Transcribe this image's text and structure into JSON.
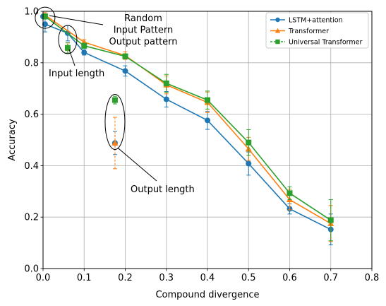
{
  "chart_data": {
    "type": "line",
    "xlabel": "Compound divergence",
    "ylabel": "Accuracy",
    "xlim": [
      0.0,
      0.8
    ],
    "ylim": [
      0.0,
      1.0
    ],
    "xticks": [
      "0.0",
      "0.1",
      "0.2",
      "0.3",
      "0.4",
      "0.5",
      "0.6",
      "0.7",
      "0.8"
    ],
    "yticks": [
      "0.0",
      "0.2",
      "0.4",
      "0.6",
      "0.8",
      "1.0"
    ],
    "grid": true,
    "legend_position": "top-right",
    "series": [
      {
        "name": "LSTM+attention",
        "color": "#1f77b4",
        "marker": "circle",
        "points": [
          {
            "x": 0.005,
            "y": 0.95,
            "err": 0.03
          },
          {
            "x": 0.06,
            "y": 0.915,
            "err": 0.03
          },
          {
            "x": 0.1,
            "y": 0.84,
            "err": 0.01
          },
          {
            "x": 0.2,
            "y": 0.768,
            "err": 0.02
          },
          {
            "x": 0.3,
            "y": 0.658,
            "err": 0.03
          },
          {
            "x": 0.4,
            "y": 0.576,
            "err": 0.035
          },
          {
            "x": 0.5,
            "y": 0.408,
            "err": 0.045
          },
          {
            "x": 0.6,
            "y": 0.232,
            "err": 0.02
          },
          {
            "x": 0.7,
            "y": 0.152,
            "err": 0.06
          }
        ],
        "extra_points": [
          {
            "x": 0.0,
            "y": 0.98,
            "err": 0.0
          },
          {
            "x": 0.175,
            "y": 0.488,
            "err": 0.045
          }
        ]
      },
      {
        "name": "Transformer",
        "color": "#ff7f0e",
        "marker": "triangle",
        "points": [
          {
            "x": 0.005,
            "y": 0.985,
            "err": 0.01
          },
          {
            "x": 0.1,
            "y": 0.88,
            "err": 0.01
          },
          {
            "x": 0.2,
            "y": 0.828,
            "err": 0.015
          },
          {
            "x": 0.3,
            "y": 0.714,
            "err": 0.035
          },
          {
            "x": 0.4,
            "y": 0.646,
            "err": 0.04
          },
          {
            "x": 0.5,
            "y": 0.465,
            "err": 0.045
          },
          {
            "x": 0.6,
            "y": 0.268,
            "err": 0.04
          },
          {
            "x": 0.7,
            "y": 0.175,
            "err": 0.07
          }
        ],
        "extra_points": [
          {
            "x": 0.06,
            "y": 0.862,
            "err": 0.015
          },
          {
            "x": 0.175,
            "y": 0.488,
            "err": 0.1
          }
        ]
      },
      {
        "name": "Universal Transformer",
        "color": "#2ca02c",
        "marker": "square",
        "points": [
          {
            "x": 0.005,
            "y": 0.98,
            "err": 0.01
          },
          {
            "x": 0.1,
            "y": 0.866,
            "err": 0.01
          },
          {
            "x": 0.2,
            "y": 0.825,
            "err": 0.01
          },
          {
            "x": 0.3,
            "y": 0.72,
            "err": 0.035
          },
          {
            "x": 0.4,
            "y": 0.655,
            "err": 0.035
          },
          {
            "x": 0.5,
            "y": 0.49,
            "err": 0.05
          },
          {
            "x": 0.6,
            "y": 0.293,
            "err": 0.025
          },
          {
            "x": 0.7,
            "y": 0.188,
            "err": 0.08
          }
        ],
        "extra_points": [
          {
            "x": 0.06,
            "y": 0.858,
            "err": 0.02
          },
          {
            "x": 0.175,
            "y": 0.655,
            "err": 0.015
          }
        ]
      }
    ],
    "annotations": [
      {
        "lines": [
          "Random",
          "Input Pattern",
          "Output pattern"
        ],
        "target": {
          "x": 0.005,
          "y": 0.975
        }
      },
      {
        "lines": [
          "Input length"
        ],
        "target": {
          "x": 0.06,
          "y": 0.88
        }
      },
      {
        "lines": [
          "Output length"
        ],
        "target": {
          "x": 0.175,
          "y": 0.48
        }
      }
    ]
  }
}
